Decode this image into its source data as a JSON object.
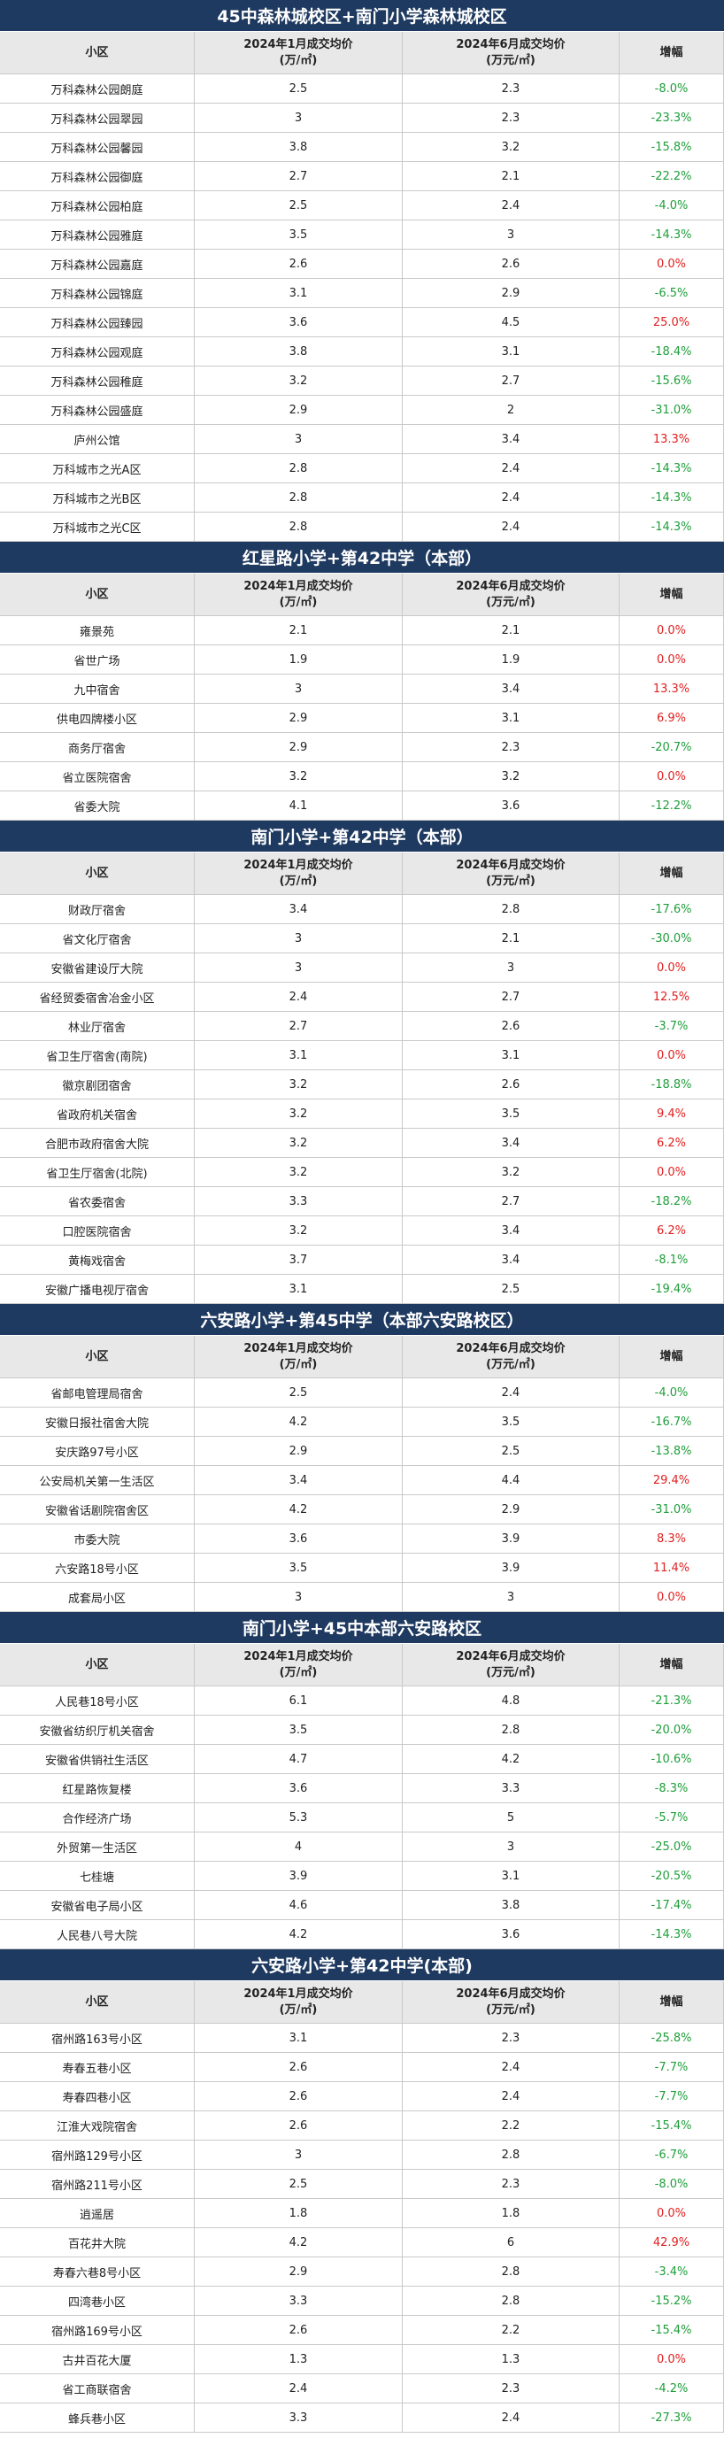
{
  "sections": [
    {
      "title": "45中森林城校区+南门小学森林城校区",
      "header": [
        [
          "小区"
        ],
        [
          "2024年1月成交均价",
          "(万/㎡)"
        ],
        [
          "2024年6月成交均价",
          "(万元/㎡)"
        ],
        [
          "增幅"
        ]
      ],
      "rows": [
        [
          "万科森林公园朗庭",
          "2.5",
          "2.3",
          "-8.0%"
        ],
        [
          "万科森林公园翠园",
          "3",
          "2.3",
          "-23.3%"
        ],
        [
          "万科森林公园馨园",
          "3.8",
          "3.2",
          "-15.8%"
        ],
        [
          "万科森林公园御庭",
          "2.7",
          "2.1",
          "-22.2%"
        ],
        [
          "万科森林公园柏庭",
          "2.5",
          "2.4",
          "-4.0%"
        ],
        [
          "万科森林公园雅庭",
          "3.5",
          "3",
          "-14.3%"
        ],
        [
          "万科森林公园嘉庭",
          "2.6",
          "2.6",
          "0.0%"
        ],
        [
          "万科森林公园锦庭",
          "3.1",
          "2.9",
          "-6.5%"
        ],
        [
          "万科森林公园臻园",
          "3.6",
          "4.5",
          "25.0%"
        ],
        [
          "万科森林公园观庭",
          "3.8",
          "3.1",
          "-18.4%"
        ],
        [
          "万科森林公园稚庭",
          "3.2",
          "2.7",
          "-15.6%"
        ],
        [
          "万科森林公园盛庭",
          "2.9",
          "2",
          "-31.0%"
        ],
        [
          "庐州公馆",
          "3",
          "3.4",
          "13.3%"
        ],
        [
          "万科城市之光A区",
          "2.8",
          "2.4",
          "-14.3%"
        ],
        [
          "万科城市之光B区",
          "2.8",
          "2.4",
          "-14.3%"
        ],
        [
          "万科城市之光C区",
          "2.8",
          "2.4",
          "-14.3%"
        ]
      ]
    },
    {
      "title": "红星路小学+第42中学（本部）",
      "header": [
        [
          "小区"
        ],
        [
          "2024年1月成交均价",
          "(万/㎡)"
        ],
        [
          "2024年6月成交均价",
          "(万元/㎡)"
        ],
        [
          "增幅"
        ]
      ],
      "rows": [
        [
          "雍景苑",
          "2.1",
          "2.1",
          "0.0%"
        ],
        [
          "省世广场",
          "1.9",
          "1.9",
          "0.0%"
        ],
        [
          "九中宿舍",
          "3",
          "3.4",
          "13.3%"
        ],
        [
          "供电四牌楼小区",
          "2.9",
          "3.1",
          "6.9%"
        ],
        [
          "商务厅宿舍",
          "2.9",
          "2.3",
          "-20.7%"
        ],
        [
          "省立医院宿舍",
          "3.2",
          "3.2",
          "0.0%"
        ],
        [
          "省委大院",
          "4.1",
          "3.6",
          "-12.2%"
        ]
      ]
    },
    {
      "title": "南门小学+第42中学（本部）",
      "header": [
        [
          "小区"
        ],
        [
          "2024年1月成交均价",
          "(万/㎡)"
        ],
        [
          "2024年6月成交均价",
          "(万元/㎡)"
        ],
        [
          "增幅"
        ]
      ],
      "rows": [
        [
          "财政厅宿舍",
          "3.4",
          "2.8",
          "-17.6%"
        ],
        [
          "省文化厅宿舍",
          "3",
          "2.1",
          "-30.0%"
        ],
        [
          "安徽省建设厅大院",
          "3",
          "3",
          "0.0%"
        ],
        [
          "省经贸委宿舍冶金小区",
          "2.4",
          "2.7",
          "12.5%"
        ],
        [
          "林业厅宿舍",
          "2.7",
          "2.6",
          "-3.7%"
        ],
        [
          "省卫生厅宿舍(南院)",
          "3.1",
          "3.1",
          "0.0%"
        ],
        [
          "徽京剧团宿舍",
          "3.2",
          "2.6",
          "-18.8%"
        ],
        [
          "省政府机关宿舍",
          "3.2",
          "3.5",
          "9.4%"
        ],
        [
          "合肥市政府宿舍大院",
          "3.2",
          "3.4",
          "6.2%"
        ],
        [
          "省卫生厅宿舍(北院)",
          "3.2",
          "3.2",
          "0.0%"
        ],
        [
          "省农委宿舍",
          "3.3",
          "2.7",
          "-18.2%"
        ],
        [
          "口腔医院宿舍",
          "3.2",
          "3.4",
          "6.2%"
        ],
        [
          "黄梅戏宿舍",
          "3.7",
          "3.4",
          "-8.1%"
        ],
        [
          "安徽广播电视厅宿舍",
          "3.1",
          "2.5",
          "-19.4%"
        ]
      ]
    },
    {
      "title": "六安路小学+第45中学（本部六安路校区）",
      "header": [
        [
          "小区"
        ],
        [
          "2024年1月成交均价",
          "(万/㎡)"
        ],
        [
          "2024年6月成交均价",
          "(万元/㎡)"
        ],
        [
          "增幅"
        ]
      ],
      "rows": [
        [
          "省邮电管理局宿舍",
          "2.5",
          "2.4",
          "-4.0%"
        ],
        [
          "安徽日报社宿舍大院",
          "4.2",
          "3.5",
          "-16.7%"
        ],
        [
          "安庆路97号小区",
          "2.9",
          "2.5",
          "-13.8%"
        ],
        [
          "公安局机关第一生活区",
          "3.4",
          "4.4",
          "29.4%"
        ],
        [
          "安徽省话剧院宿舍区",
          "4.2",
          "2.9",
          "-31.0%"
        ],
        [
          "市委大院",
          "3.6",
          "3.9",
          "8.3%"
        ],
        [
          "六安路18号小区",
          "3.5",
          "3.9",
          "11.4%"
        ],
        [
          "成套局小区",
          "3",
          "3",
          "0.0%"
        ]
      ]
    },
    {
      "title": "南门小学+45中本部六安路校区",
      "header": [
        [
          "小区"
        ],
        [
          "2024年1月成交均价",
          "(万/㎡)"
        ],
        [
          "2024年6月成交均价",
          "(万元/㎡)"
        ],
        [
          "增幅"
        ]
      ],
      "rows": [
        [
          "人民巷18号小区",
          "6.1",
          "4.8",
          "-21.3%"
        ],
        [
          "安徽省纺织厅机关宿舍",
          "3.5",
          "2.8",
          "-20.0%"
        ],
        [
          "安徽省供销社生活区",
          "4.7",
          "4.2",
          "-10.6%"
        ],
        [
          "红星路恢复楼",
          "3.6",
          "3.3",
          "-8.3%"
        ],
        [
          "合作经济广场",
          "5.3",
          "5",
          "-5.7%"
        ],
        [
          "外贸第一生活区",
          "4",
          "3",
          "-25.0%"
        ],
        [
          "七桂塘",
          "3.9",
          "3.1",
          "-20.5%"
        ],
        [
          "安徽省电子局小区",
          "4.6",
          "3.8",
          "-17.4%"
        ],
        [
          "人民巷八号大院",
          "4.2",
          "3.6",
          "-14.3%"
        ]
      ]
    },
    {
      "title": "六安路小学+第42中学(本部)",
      "header": [
        [
          "小区"
        ],
        [
          "2024年1月成交均价",
          "(万/㎡)"
        ],
        [
          "2024年6月成交均价",
          "(万元/㎡)"
        ],
        [
          "增幅"
        ]
      ],
      "rows": [
        [
          "宿州路163号小区",
          "3.1",
          "2.3",
          "-25.8%"
        ],
        [
          "寿春五巷小区",
          "2.6",
          "2.4",
          "-7.7%"
        ],
        [
          "寿春四巷小区",
          "2.6",
          "2.4",
          "-7.7%"
        ],
        [
          "江淮大戏院宿舍",
          "2.6",
          "2.2",
          "-15.4%"
        ],
        [
          "宿州路129号小区",
          "3",
          "2.8",
          "-6.7%"
        ],
        [
          "宿州路211号小区",
          "2.5",
          "2.3",
          "-8.0%"
        ],
        [
          "逍遥居",
          "1.8",
          "1.8",
          "0.0%"
        ],
        [
          "百花井大院",
          "4.2",
          "6",
          "42.9%"
        ],
        [
          "寿春六巷8号小区",
          "2.9",
          "2.8",
          "-3.4%"
        ],
        [
          "四湾巷小区",
          "3.3",
          "2.8",
          "-15.2%"
        ],
        [
          "宿州路169号小区",
          "2.6",
          "2.2",
          "-15.4%"
        ],
        [
          "古井百花大厦",
          "1.3",
          "1.3",
          "0.0%"
        ],
        [
          "省工商联宿舍",
          "2.4",
          "2.3",
          "-4.2%"
        ],
        [
          "蜂兵巷小区",
          "3.3",
          "2.4",
          "-27.3%"
        ]
      ]
    }
  ]
}
